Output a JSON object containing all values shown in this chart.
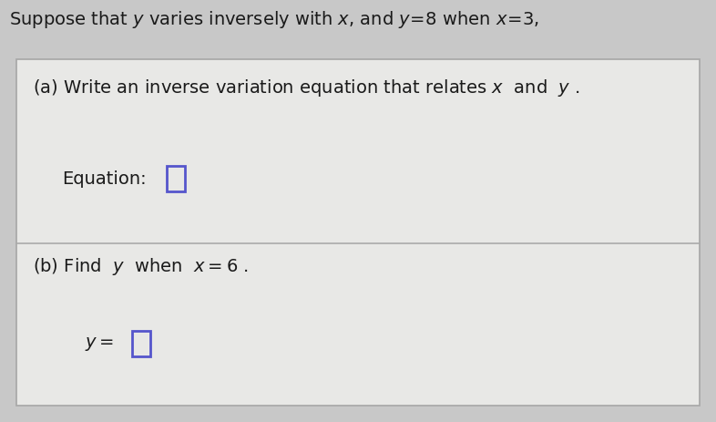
{
  "background_color": "#c8c8c8",
  "inner_box_color": "#e8e8e6",
  "title_text": "Suppose that $y$ varies inversely with $x$, and $y\\!=\\!8$ when $x\\!=\\!3$,",
  "part_a_label": "(a) Write an inverse variation equation that relates $x$  and  $y$ .",
  "part_a_sub": "Equation:",
  "part_b_label": "(b) Find  $y$  when  $x = 6$ .",
  "part_b_sub": "$y =$ ",
  "box_color": "#5555cc",
  "title_fontsize": 14,
  "label_fontsize": 14,
  "sub_fontsize": 14,
  "title_color": "#1a1a1a",
  "label_color": "#1a1a1a",
  "divider_color": "#aaaaaa",
  "outer_box_edge_color": "#aaaaaa",
  "fig_width": 7.86,
  "fig_height": 4.63,
  "dpi": 100
}
